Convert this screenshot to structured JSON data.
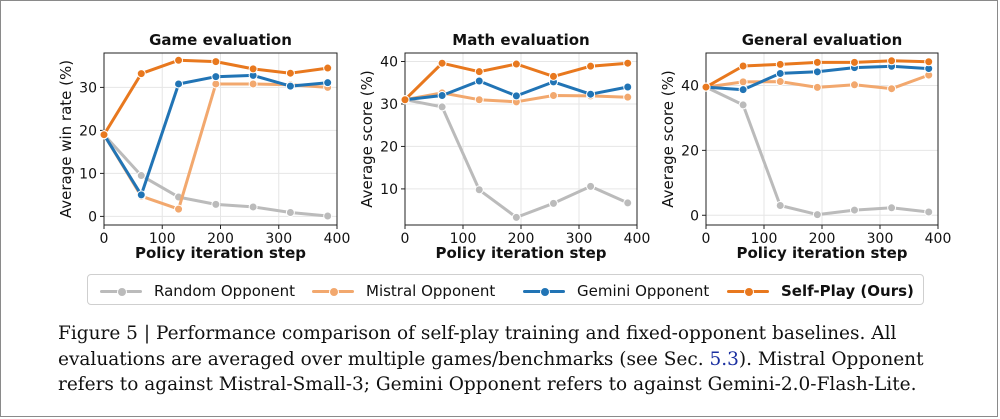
{
  "colors": {
    "random": "#bbbbbb",
    "mistral": "#f2a86e",
    "gemini": "#2174b5",
    "selfplay": "#e8781e"
  },
  "legend": [
    {
      "key": "random",
      "label": "Random Opponent",
      "bold": false
    },
    {
      "key": "mistral",
      "label": "Mistral Opponent",
      "bold": false
    },
    {
      "key": "gemini",
      "label": "Gemini Opponent",
      "bold": false
    },
    {
      "key": "selfplay",
      "label": "Self-Play (Ours)",
      "bold": true
    }
  ],
  "caption": {
    "line1_start": "Figure 5 | Performance comparison of self-play training and fixed-opponent baselines.  All evaluations are averaged over multiple games/benchmarks (see Sec. ",
    "ref": "5.3",
    "line1_end": ").  Mistral Opponent refers to against Mistral-Small-3; Gemini Opponent refers to against Gemini-2.0-Flash-Lite."
  },
  "chart_data": [
    {
      "type": "line",
      "title": "Game evaluation",
      "xlabel": "Policy iteration step",
      "ylabel": "Average win rate (%)",
      "xlim": [
        0,
        400
      ],
      "ylim": [
        -2,
        38
      ],
      "xticks": [
        0,
        100,
        200,
        300,
        400
      ],
      "yticks": [
        0,
        10,
        20,
        30
      ],
      "grid": true,
      "x": [
        0,
        64,
        128,
        192,
        256,
        320,
        384
      ],
      "series": [
        {
          "key": "random",
          "name": "Random Opponent",
          "values": [
            19,
            9.5,
            4.5,
            2.8,
            2.2,
            0.9,
            0.1
          ]
        },
        {
          "key": "mistral",
          "name": "Mistral Opponent",
          "values": [
            19,
            4.7,
            1.7,
            30.8,
            30.8,
            30.6,
            30.0
          ]
        },
        {
          "key": "gemini",
          "name": "Gemini Opponent",
          "values": [
            19,
            5.0,
            30.8,
            32.5,
            32.8,
            30.3,
            31.1
          ]
        },
        {
          "key": "selfplay",
          "name": "Self-Play (Ours)",
          "values": [
            19,
            33.2,
            36.3,
            36.0,
            34.3,
            33.3,
            34.5
          ]
        }
      ]
    },
    {
      "type": "line",
      "title": "Math evaluation",
      "xlabel": "Policy iteration step",
      "ylabel": "Average score (%)",
      "xlim": [
        0,
        400
      ],
      "ylim": [
        1.5,
        42
      ],
      "xticks": [
        0,
        100,
        200,
        300,
        400
      ],
      "yticks": [
        10,
        20,
        30,
        40
      ],
      "grid": true,
      "x": [
        0,
        64,
        128,
        192,
        256,
        320,
        384
      ],
      "series": [
        {
          "key": "random",
          "name": "Random Opponent",
          "values": [
            31,
            29.3,
            9.8,
            3.3,
            6.6,
            10.6,
            6.7
          ]
        },
        {
          "key": "mistral",
          "name": "Mistral Opponent",
          "values": [
            31,
            32.6,
            31.0,
            30.5,
            32.0,
            31.9,
            31.6
          ]
        },
        {
          "key": "gemini",
          "name": "Gemini Opponent",
          "values": [
            31,
            32.0,
            35.4,
            31.9,
            35.2,
            32.3,
            34.0
          ]
        },
        {
          "key": "selfplay",
          "name": "Self-Play (Ours)",
          "values": [
            31,
            39.6,
            37.6,
            39.4,
            36.5,
            38.9,
            39.6
          ]
        }
      ]
    },
    {
      "type": "line",
      "title": "General evaluation",
      "xlabel": "Policy iteration step",
      "ylabel": "Average score (%)",
      "xlim": [
        0,
        400
      ],
      "ylim": [
        -3,
        50
      ],
      "xticks": [
        0,
        100,
        200,
        300,
        400
      ],
      "yticks": [
        0,
        20,
        40
      ],
      "grid": true,
      "x": [
        0,
        64,
        128,
        192,
        256,
        320,
        384
      ],
      "series": [
        {
          "key": "random",
          "name": "Random Opponent",
          "values": [
            39.5,
            34.0,
            3.0,
            0.2,
            1.6,
            2.3,
            1.0
          ]
        },
        {
          "key": "mistral",
          "name": "Mistral Opponent",
          "values": [
            39.5,
            41.1,
            41.2,
            39.4,
            40.2,
            39.0,
            43.2
          ]
        },
        {
          "key": "gemini",
          "name": "Gemini Opponent",
          "values": [
            39.5,
            38.7,
            43.7,
            44.2,
            45.5,
            45.9,
            45.2
          ]
        },
        {
          "key": "selfplay",
          "name": "Self-Play (Ours)",
          "values": [
            39.5,
            46.0,
            46.5,
            47.1,
            47.1,
            47.6,
            47.3
          ]
        }
      ]
    }
  ]
}
